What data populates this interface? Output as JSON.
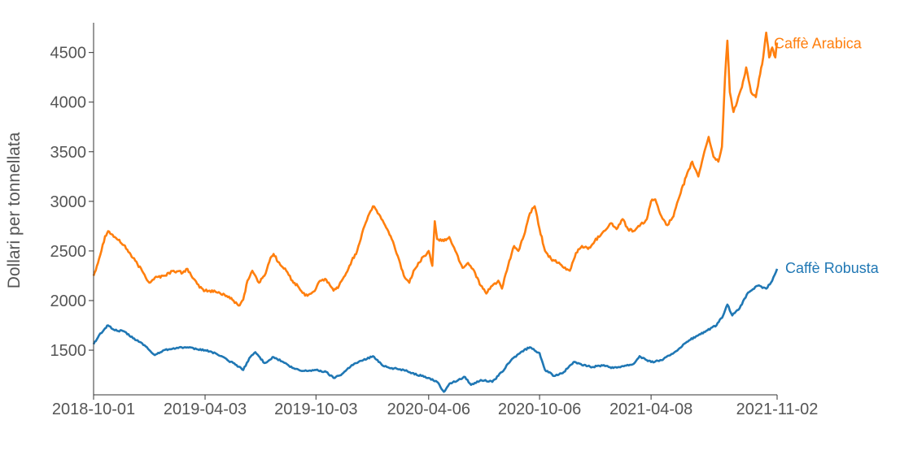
{
  "chart_data": {
    "type": "line",
    "ylabel": "Dollari per tonnellata",
    "xlabel": "",
    "ylim": [
      1050,
      4800
    ],
    "xlim": [
      "2018-10-01",
      "2021-11-02"
    ],
    "x_ticks": [
      "2018-10-01",
      "2019-04-03",
      "2019-10-03",
      "2020-04-06",
      "2020-10-06",
      "2021-04-08",
      "2021-11-02"
    ],
    "y_ticks": [
      1500,
      2000,
      2500,
      3000,
      3500,
      4000,
      4500
    ],
    "grid": false,
    "series": [
      {
        "name": "Caffè Arabica",
        "color": "#ff7f0e",
        "points": [
          [
            "2018-10-01",
            2250
          ],
          [
            "2018-10-10",
            2420
          ],
          [
            "2018-10-20",
            2650
          ],
          [
            "2018-10-25",
            2700
          ],
          [
            "2018-11-05",
            2640
          ],
          [
            "2018-11-20",
            2560
          ],
          [
            "2018-12-05",
            2430
          ],
          [
            "2018-12-20",
            2300
          ],
          [
            "2019-01-01",
            2180
          ],
          [
            "2019-01-10",
            2230
          ],
          [
            "2019-01-25",
            2250
          ],
          [
            "2019-02-10",
            2300
          ],
          [
            "2019-02-25",
            2280
          ],
          [
            "2019-03-05",
            2320
          ],
          [
            "2019-03-15",
            2220
          ],
          [
            "2019-03-25",
            2130
          ],
          [
            "2019-04-03",
            2100
          ],
          [
            "2019-04-20",
            2090
          ],
          [
            "2019-05-05",
            2060
          ],
          [
            "2019-05-20",
            2000
          ],
          [
            "2019-05-28",
            1950
          ],
          [
            "2019-06-05",
            2010
          ],
          [
            "2019-06-12",
            2200
          ],
          [
            "2019-06-20",
            2300
          ],
          [
            "2019-07-01",
            2180
          ],
          [
            "2019-07-10",
            2250
          ],
          [
            "2019-07-20",
            2430
          ],
          [
            "2019-07-25",
            2470
          ],
          [
            "2019-08-05",
            2360
          ],
          [
            "2019-08-15",
            2300
          ],
          [
            "2019-08-25",
            2200
          ],
          [
            "2019-09-05",
            2130
          ],
          [
            "2019-09-15",
            2050
          ],
          [
            "2019-09-25",
            2070
          ],
          [
            "2019-10-03",
            2120
          ],
          [
            "2019-10-10",
            2200
          ],
          [
            "2019-10-20",
            2210
          ],
          [
            "2019-11-01",
            2100
          ],
          [
            "2019-11-10",
            2150
          ],
          [
            "2019-11-20",
            2250
          ],
          [
            "2019-12-01",
            2400
          ],
          [
            "2019-12-10",
            2500
          ],
          [
            "2019-12-20",
            2720
          ],
          [
            "2019-12-28",
            2850
          ],
          [
            "2020-01-05",
            2950
          ],
          [
            "2020-01-15",
            2870
          ],
          [
            "2020-01-25",
            2760
          ],
          [
            "2020-02-05",
            2620
          ],
          [
            "2020-02-15",
            2450
          ],
          [
            "2020-02-25",
            2250
          ],
          [
            "2020-03-05",
            2180
          ],
          [
            "2020-03-12",
            2300
          ],
          [
            "2020-03-20",
            2380
          ],
          [
            "2020-03-30",
            2450
          ],
          [
            "2020-04-06",
            2500
          ],
          [
            "2020-04-12",
            2350
          ],
          [
            "2020-04-16",
            2800
          ],
          [
            "2020-04-20",
            2620
          ],
          [
            "2020-05-01",
            2600
          ],
          [
            "2020-05-10",
            2640
          ],
          [
            "2020-05-20",
            2500
          ],
          [
            "2020-06-01",
            2330
          ],
          [
            "2020-06-10",
            2380
          ],
          [
            "2020-06-20",
            2300
          ],
          [
            "2020-07-01",
            2150
          ],
          [
            "2020-07-10",
            2070
          ],
          [
            "2020-07-20",
            2150
          ],
          [
            "2020-07-30",
            2200
          ],
          [
            "2020-08-05",
            2120
          ],
          [
            "2020-08-15",
            2350
          ],
          [
            "2020-08-25",
            2550
          ],
          [
            "2020-09-01",
            2500
          ],
          [
            "2020-09-10",
            2650
          ],
          [
            "2020-09-20",
            2880
          ],
          [
            "2020-09-28",
            2950
          ],
          [
            "2020-10-06",
            2720
          ],
          [
            "2020-10-15",
            2500
          ],
          [
            "2020-10-25",
            2420
          ],
          [
            "2020-11-05",
            2380
          ],
          [
            "2020-11-15",
            2330
          ],
          [
            "2020-11-25",
            2300
          ],
          [
            "2020-12-05",
            2480
          ],
          [
            "2020-12-15",
            2550
          ],
          [
            "2020-12-25",
            2520
          ],
          [
            "2021-01-05",
            2600
          ],
          [
            "2021-01-20",
            2700
          ],
          [
            "2021-02-01",
            2780
          ],
          [
            "2021-02-10",
            2720
          ],
          [
            "2021-02-20",
            2820
          ],
          [
            "2021-03-01",
            2720
          ],
          [
            "2021-03-10",
            2700
          ],
          [
            "2021-03-20",
            2750
          ],
          [
            "2021-04-01",
            2820
          ],
          [
            "2021-04-08",
            3000
          ],
          [
            "2021-04-15",
            3020
          ],
          [
            "2021-04-25",
            2850
          ],
          [
            "2021-05-05",
            2760
          ],
          [
            "2021-05-15",
            2850
          ],
          [
            "2021-05-25",
            3050
          ],
          [
            "2021-06-05",
            3250
          ],
          [
            "2021-06-15",
            3400
          ],
          [
            "2021-06-25",
            3250
          ],
          [
            "2021-07-05",
            3500
          ],
          [
            "2021-07-12",
            3650
          ],
          [
            "2021-07-20",
            3450
          ],
          [
            "2021-07-28",
            3400
          ],
          [
            "2021-08-03",
            3550
          ],
          [
            "2021-08-08",
            4250
          ],
          [
            "2021-08-12",
            4620
          ],
          [
            "2021-08-16",
            4100
          ],
          [
            "2021-08-22",
            3900
          ],
          [
            "2021-08-30",
            4050
          ],
          [
            "2021-09-05",
            4150
          ],
          [
            "2021-09-12",
            4350
          ],
          [
            "2021-09-20",
            4100
          ],
          [
            "2021-09-28",
            4050
          ],
          [
            "2021-10-05",
            4280
          ],
          [
            "2021-10-10",
            4450
          ],
          [
            "2021-10-15",
            4700
          ],
          [
            "2021-10-20",
            4450
          ],
          [
            "2021-10-25",
            4550
          ],
          [
            "2021-10-30",
            4450
          ],
          [
            "2021-11-02",
            4600
          ]
        ]
      },
      {
        "name": "Caffè Robusta",
        "color": "#1f77b4",
        "points": [
          [
            "2018-10-01",
            1560
          ],
          [
            "2018-10-10",
            1650
          ],
          [
            "2018-10-20",
            1720
          ],
          [
            "2018-10-25",
            1750
          ],
          [
            "2018-11-05",
            1700
          ],
          [
            "2018-11-20",
            1690
          ],
          [
            "2018-12-05",
            1620
          ],
          [
            "2018-12-20",
            1570
          ],
          [
            "2019-01-01",
            1500
          ],
          [
            "2019-01-10",
            1450
          ],
          [
            "2019-01-25",
            1500
          ],
          [
            "2019-02-10",
            1520
          ],
          [
            "2019-03-01",
            1530
          ],
          [
            "2019-03-20",
            1510
          ],
          [
            "2019-04-03",
            1500
          ],
          [
            "2019-04-20",
            1470
          ],
          [
            "2019-05-10",
            1400
          ],
          [
            "2019-05-25",
            1350
          ],
          [
            "2019-06-05",
            1300
          ],
          [
            "2019-06-15",
            1420
          ],
          [
            "2019-06-25",
            1480
          ],
          [
            "2019-07-10",
            1370
          ],
          [
            "2019-07-25",
            1430
          ],
          [
            "2019-08-10",
            1380
          ],
          [
            "2019-08-25",
            1320
          ],
          [
            "2019-09-10",
            1290
          ],
          [
            "2019-10-03",
            1300
          ],
          [
            "2019-10-20",
            1280
          ],
          [
            "2019-11-01",
            1220
          ],
          [
            "2019-11-15",
            1260
          ],
          [
            "2019-12-01",
            1350
          ],
          [
            "2019-12-20",
            1400
          ],
          [
            "2020-01-05",
            1440
          ],
          [
            "2020-01-20",
            1350
          ],
          [
            "2020-02-05",
            1320
          ],
          [
            "2020-02-25",
            1300
          ],
          [
            "2020-03-10",
            1270
          ],
          [
            "2020-03-25",
            1240
          ],
          [
            "2020-04-06",
            1220
          ],
          [
            "2020-04-20",
            1180
          ],
          [
            "2020-05-01",
            1080
          ],
          [
            "2020-05-10",
            1160
          ],
          [
            "2020-05-25",
            1200
          ],
          [
            "2020-06-05",
            1230
          ],
          [
            "2020-06-15",
            1150
          ],
          [
            "2020-07-01",
            1200
          ],
          [
            "2020-07-20",
            1180
          ],
          [
            "2020-08-05",
            1280
          ],
          [
            "2020-08-20",
            1400
          ],
          [
            "2020-09-05",
            1480
          ],
          [
            "2020-09-20",
            1530
          ],
          [
            "2020-10-06",
            1470
          ],
          [
            "2020-10-15",
            1300
          ],
          [
            "2020-10-30",
            1240
          ],
          [
            "2020-11-15",
            1280
          ],
          [
            "2020-12-01",
            1380
          ],
          [
            "2020-12-15",
            1350
          ],
          [
            "2021-01-01",
            1330
          ],
          [
            "2021-01-20",
            1350
          ],
          [
            "2021-02-05",
            1320
          ],
          [
            "2021-02-20",
            1340
          ],
          [
            "2021-03-10",
            1360
          ],
          [
            "2021-03-20",
            1440
          ],
          [
            "2021-04-01",
            1400
          ],
          [
            "2021-04-08",
            1380
          ],
          [
            "2021-04-25",
            1400
          ],
          [
            "2021-05-10",
            1450
          ],
          [
            "2021-05-25",
            1520
          ],
          [
            "2021-06-10",
            1600
          ],
          [
            "2021-06-25",
            1650
          ],
          [
            "2021-07-10",
            1700
          ],
          [
            "2021-07-25",
            1750
          ],
          [
            "2021-08-05",
            1850
          ],
          [
            "2021-08-12",
            1960
          ],
          [
            "2021-08-20",
            1850
          ],
          [
            "2021-09-01",
            1920
          ],
          [
            "2021-09-15",
            2080
          ],
          [
            "2021-10-01",
            2150
          ],
          [
            "2021-10-15",
            2120
          ],
          [
            "2021-10-25",
            2200
          ],
          [
            "2021-11-02",
            2320
          ]
        ]
      }
    ]
  }
}
